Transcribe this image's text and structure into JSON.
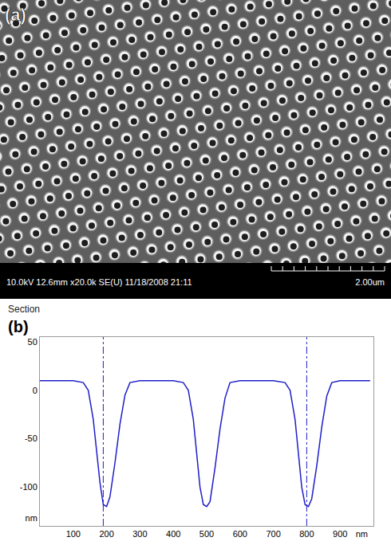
{
  "sem_image": {
    "panel_label": "(a)",
    "info_text": "10.0kV 12.6mm x20.0k SE(U) 11/18/2008 21:11",
    "scale_label": "2.00um"
  },
  "chart_data": {
    "type": "line",
    "panel_label": "(b)",
    "title": "Section",
    "color": "#1f1fc8",
    "line_style": "solid",
    "grid": false,
    "x": [
      0,
      50,
      100,
      130,
      145,
      160,
      170,
      180,
      190,
      200,
      210,
      225,
      240,
      255,
      270,
      300,
      350,
      400,
      430,
      445,
      460,
      470,
      480,
      490,
      500,
      510,
      525,
      540,
      555,
      570,
      600,
      650,
      700,
      735,
      750,
      765,
      775,
      785,
      795,
      805,
      815,
      830,
      845,
      860,
      875,
      900,
      950,
      990
    ],
    "values": [
      10,
      10,
      10,
      8,
      0,
      -30,
      -60,
      -95,
      -118,
      -120,
      -110,
      -75,
      -35,
      -5,
      8,
      10,
      10,
      10,
      8,
      0,
      -30,
      -65,
      -100,
      -118,
      -120,
      -115,
      -80,
      -40,
      -8,
      8,
      10,
      10,
      10,
      8,
      0,
      -30,
      -65,
      -100,
      -118,
      -120,
      -112,
      -78,
      -38,
      -6,
      8,
      10,
      10,
      10
    ],
    "xlim": [
      0,
      1000
    ],
    "xticks": [
      100,
      200,
      300,
      400,
      500,
      600,
      700,
      800,
      900,
      {
        "value": 965,
        "label": "nm"
      }
    ],
    "ylim": [
      -140,
      55
    ],
    "yticks": [
      50,
      0,
      -50,
      -100,
      {
        "value": -132,
        "label": "nm"
      }
    ],
    "vertical_lines": [
      190,
      800
    ]
  }
}
